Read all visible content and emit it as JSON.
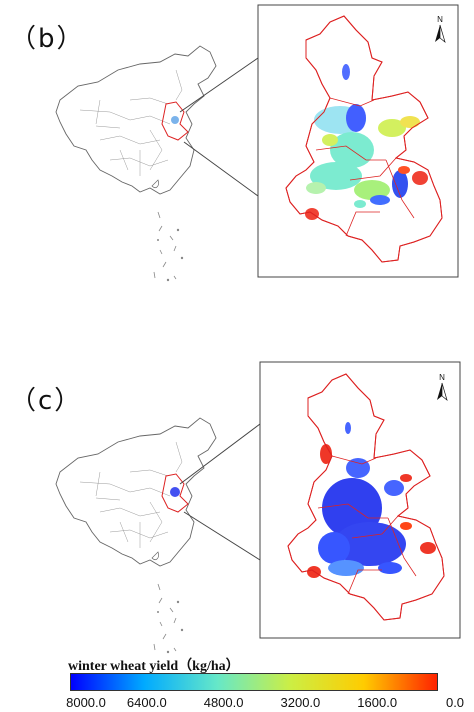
{
  "panels": [
    {
      "label": "（b）",
      "north": "N"
    },
    {
      "label": "（c）",
      "north": "N"
    }
  ],
  "legend": {
    "title": "winter wheat yield（kg/ha）",
    "ticks": [
      "8000.0",
      "6400.0",
      "4800.0",
      "3200.0",
      "1600.0",
      "0.0"
    ],
    "colors": [
      "#0000ff",
      "#00aaff",
      "#66e8c8",
      "#ccee44",
      "#ffcc00",
      "#ff2200"
    ]
  },
  "colors": {
    "boundary": "#dd2222",
    "china_outline": "#666666",
    "frame": "#444444"
  }
}
